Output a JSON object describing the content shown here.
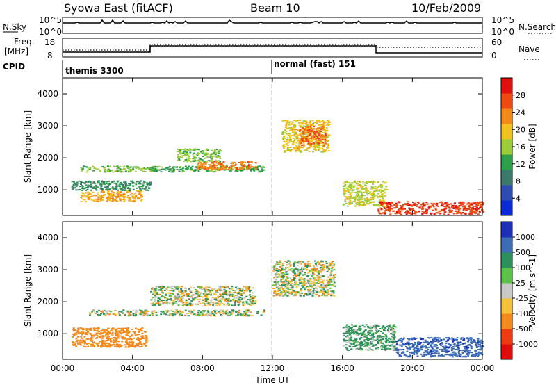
{
  "header": {
    "station": "Syowa East (fitACF)",
    "beam": "Beam 10",
    "date": "10/Feb/2009"
  },
  "nsky_panel": {
    "left_label": "N.Sky",
    "right_label": "N.Search",
    "left_ticks": [
      "10^5",
      "10^0"
    ],
    "right_ticks": [
      "10^5",
      "10^0"
    ]
  },
  "freq_panel": {
    "left_label_1": "Freq.",
    "left_label_2": "[MHz]",
    "left_ticks": [
      "18",
      "8"
    ],
    "right_label": "Nave",
    "right_ticks": [
      "60",
      "0"
    ]
  },
  "cpid": {
    "label": "CPID",
    "modes": [
      {
        "name": "themis 3300",
        "start": "00:00"
      },
      {
        "name": "normal (fast) 151",
        "start": "12:00"
      }
    ]
  },
  "time_axis": {
    "label": "Time UT",
    "ticks": [
      "00:00",
      "04:00",
      "08:00",
      "12:00",
      "16:00",
      "20:00",
      "00:00"
    ]
  },
  "y_axis": {
    "label": "Slant Range [km]",
    "ticks": [
      "1000",
      "2000",
      "3000",
      "4000"
    ]
  },
  "power_scale": {
    "label": "Power [dB]",
    "ticks": [
      "4",
      "8",
      "12",
      "16",
      "20",
      "24",
      "28"
    ],
    "colors": [
      "#0b2bd6",
      "#2d4db0",
      "#3c7a6b",
      "#2e9e4a",
      "#9ccc3c",
      "#f0c21e",
      "#f28a1a",
      "#ec4a12",
      "#e0100e"
    ]
  },
  "velocity_scale": {
    "label": "Velocity [m s^-1]",
    "ticks": [
      "1000",
      "500",
      "100",
      "25",
      "-25",
      "-100",
      "-500",
      "-1000"
    ],
    "colors": [
      "#1e2fb8",
      "#3d6db3",
      "#2f8f5a",
      "#5cc04a",
      "#c8c8c8",
      "#f4c23a",
      "#f38a1c",
      "#ee3b16",
      "#e00c0c"
    ]
  },
  "chart_data": [
    {
      "type": "heatmap",
      "title": "Power",
      "x_range": [
        "00:00",
        "24:00"
      ],
      "ylim": [
        200,
        4500
      ],
      "ylabel": "Slant Range [km]",
      "xlabel": "Time UT",
      "colorbar_label": "Power [dB]",
      "colorbar_range": [
        0,
        30
      ],
      "regions": [
        {
          "t0": 1.0,
          "t1": 4.5,
          "r0": 650,
          "r1": 1000,
          "value": 20
        },
        {
          "t0": 0.5,
          "t1": 5.0,
          "r0": 1000,
          "r1": 1300,
          "value": 10
        },
        {
          "t0": 1.0,
          "t1": 5.2,
          "r0": 1580,
          "r1": 1760,
          "value": 14
        },
        {
          "t0": 5.0,
          "t1": 11.5,
          "r0": 1580,
          "r1": 1760,
          "value": 12
        },
        {
          "t0": 7.5,
          "t1": 11.0,
          "r0": 1650,
          "r1": 1900,
          "value": 22
        },
        {
          "t0": 6.5,
          "t1": 9.0,
          "r0": 1900,
          "r1": 2300,
          "value": 14
        },
        {
          "t0": 12.5,
          "t1": 15.2,
          "r0": 2200,
          "r1": 3200,
          "value": 18
        },
        {
          "t0": 13.5,
          "t1": 15.0,
          "r0": 2400,
          "r1": 3000,
          "value": 24
        },
        {
          "t0": 16.0,
          "t1": 18.5,
          "r0": 500,
          "r1": 1300,
          "value": 16
        },
        {
          "t0": 18.0,
          "t1": 24.0,
          "r0": 250,
          "r1": 650,
          "value": 26
        }
      ]
    },
    {
      "type": "heatmap",
      "title": "Velocity",
      "x_range": [
        "00:00",
        "24:00"
      ],
      "ylim": [
        200,
        4500
      ],
      "ylabel": "Slant Range [km]",
      "xlabel": "Time UT",
      "colorbar_label": "Velocity [m s^-1]",
      "colorbar_range": [
        -1000,
        1000
      ],
      "regions": [
        {
          "t0": 0.5,
          "t1": 4.8,
          "r0": 600,
          "r1": 1200,
          "value": -300
        },
        {
          "t0": 1.5,
          "t1": 11.5,
          "r0": 1580,
          "r1": 1760,
          "value": 0
        },
        {
          "t0": 5.0,
          "t1": 11.0,
          "r0": 1900,
          "r1": 2500,
          "value": 0
        },
        {
          "t0": 12.0,
          "t1": 15.5,
          "r0": 2200,
          "r1": 3300,
          "value": 0
        },
        {
          "t0": 16.0,
          "t1": 19.0,
          "r0": 500,
          "r1": 1300,
          "value": 120
        },
        {
          "t0": 19.0,
          "t1": 24.0,
          "r0": 300,
          "r1": 900,
          "value": 600
        }
      ]
    }
  ]
}
